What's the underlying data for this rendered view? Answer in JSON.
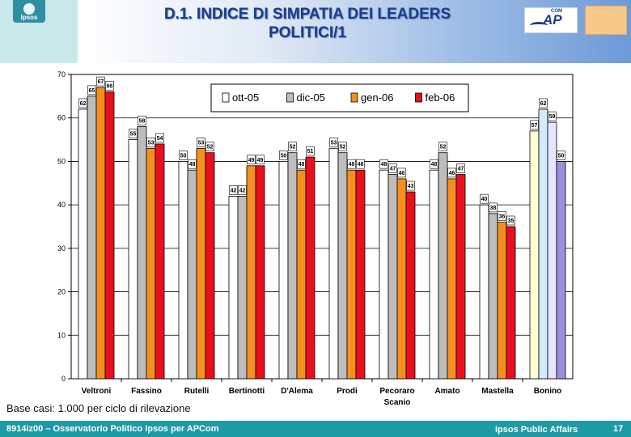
{
  "header": {
    "title_line1": "D.1. INDICE DI SIMPATIA DEI LEADERS",
    "title_line2": "POLITICI/1",
    "brand_logo": "Ipsos",
    "partner_logo": "APCOM",
    "partner_logo_mark": "AP",
    "partner_logo_sup": "COM"
  },
  "chart_data": {
    "type": "bar",
    "categories": [
      "Veltroni",
      "Fassino",
      "Rutelli",
      "Bertinotti",
      "D'Alema",
      "Prodi",
      "Pecoraro Scanio",
      "Amato",
      "Mastella",
      "Bonino"
    ],
    "series": [
      {
        "name": "ott-05",
        "color": "#ffffff",
        "values": [
          62,
          55,
          50,
          42,
          50,
          53,
          48,
          48,
          40,
          57
        ]
      },
      {
        "name": "dic-05",
        "color": "#bdbdbd",
        "values": [
          65,
          58,
          48,
          42,
          52,
          52,
          47,
          52,
          38,
          62
        ]
      },
      {
        "name": "gen-06",
        "color": "#f5901e",
        "values": [
          67,
          53,
          53,
          49,
          48,
          48,
          46,
          46,
          36,
          59
        ]
      },
      {
        "name": "feb-06",
        "color": "#e8101e",
        "values": [
          66,
          54,
          52,
          49,
          51,
          48,
          43,
          47,
          35,
          50
        ]
      }
    ],
    "bonino_colors": [
      "#ffffd2",
      "#d2ebff",
      "#e6e6ff",
      "#9b8fe0"
    ],
    "ylim": [
      0,
      70
    ],
    "yticks": [
      0,
      10,
      20,
      30,
      40,
      50,
      60,
      70
    ],
    "grid": true,
    "legend_position": "top-center",
    "xlabel": "",
    "ylabel": ""
  },
  "footnote": "Base casi: 1.000 per ciclo di rilevazione",
  "footer": {
    "ref": "8914iz00 – Osservatorio Politico Ipsos per APCom",
    "dept": "Ipsos Public Affairs",
    "page": "17"
  }
}
